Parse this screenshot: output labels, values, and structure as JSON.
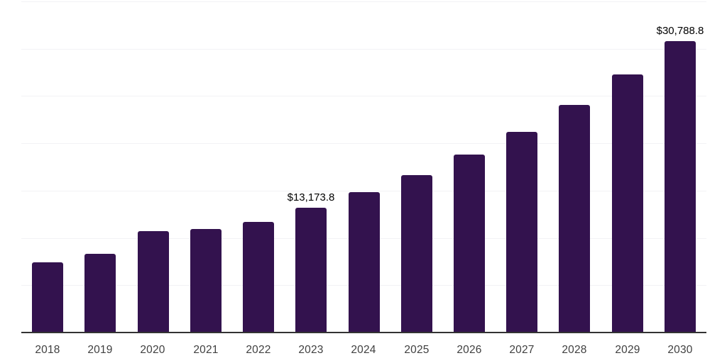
{
  "chart_data": {
    "type": "bar",
    "title": "",
    "xlabel": "",
    "ylabel": "",
    "categories": [
      "2018",
      "2019",
      "2020",
      "2021",
      "2022",
      "2023",
      "2024",
      "2025",
      "2026",
      "2027",
      "2028",
      "2029",
      "2030"
    ],
    "values": [
      7400,
      8300,
      10700,
      10950,
      11700,
      13173.8,
      14850,
      16650,
      18800,
      21200,
      24050,
      27250,
      30788.8
    ],
    "data_labels": [
      {
        "category": "2023",
        "text": "$13,173.8"
      },
      {
        "category": "2030",
        "text": "$30,788.8"
      }
    ],
    "ylim": [
      0,
      35000
    ],
    "gridline_step": 5000,
    "grid": "on",
    "legend": "none",
    "y_axis_tick_labels": "none",
    "colors": {
      "bar": "#33124E",
      "gridline": "#f2f2f5",
      "axis_line": "#333333",
      "x_label_text": "#404040",
      "value_label_text": "#000000",
      "background": "#ffffff"
    }
  }
}
